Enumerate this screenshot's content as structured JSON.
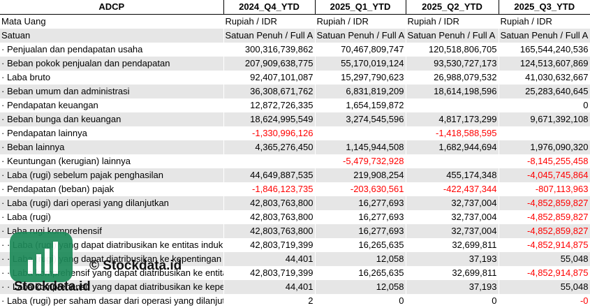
{
  "header": {
    "ticker": "ADCP",
    "periods": [
      "2024_Q4_YTD",
      "2025_Q1_YTD",
      "2025_Q2_YTD",
      "2025_Q3_YTD"
    ]
  },
  "rows": [
    {
      "label": "Mata Uang",
      "values": [
        "Rupiah / IDR",
        "Rupiah / IDR",
        "Rupiah / IDR",
        "Rupiah / IDR"
      ],
      "kind": "text"
    },
    {
      "label": "Satuan",
      "values": [
        "Satuan Penuh / Full A",
        "Satuan Penuh / Full A",
        "Satuan Penuh / Full A",
        "Satuan Penuh / Full A"
      ],
      "kind": "text"
    },
    {
      "label": "· Penjualan dan pendapatan usaha",
      "values": [
        "300,316,739,862",
        "70,467,809,747",
        "120,518,806,705",
        "165,544,240,536"
      ]
    },
    {
      "label": "· Beban pokok penjualan dan pendapatan",
      "values": [
        "207,909,638,775",
        "55,170,019,124",
        "93,530,727,173",
        "124,513,607,869"
      ]
    },
    {
      "label": "· Laba bruto",
      "values": [
        "92,407,101,087",
        "15,297,790,623",
        "26,988,079,532",
        "41,030,632,667"
      ]
    },
    {
      "label": "· Beban umum dan administrasi",
      "values": [
        "36,308,671,762",
        "6,831,819,209",
        "18,614,198,596",
        "25,283,640,645"
      ]
    },
    {
      "label": "· Pendapatan keuangan",
      "values": [
        "12,872,726,335",
        "1,654,159,872",
        "",
        "0"
      ]
    },
    {
      "label": "· Beban bunga dan keuangan",
      "values": [
        "18,624,995,549",
        "3,274,545,596",
        "4,817,173,299",
        "9,671,392,108"
      ]
    },
    {
      "label": "· Pendapatan lainnya",
      "values": [
        "-1,330,996,126",
        "",
        "-1,418,588,595",
        ""
      ]
    },
    {
      "label": "· Beban lainnya",
      "values": [
        "4,365,276,450",
        "1,145,944,508",
        "1,682,944,694",
        "1,976,090,320"
      ]
    },
    {
      "label": "· Keuntungan (kerugian) lainnya",
      "values": [
        "",
        "-5,479,732,928",
        "",
        "-8,145,255,458"
      ]
    },
    {
      "label": "· Laba (rugi) sebelum pajak penghasilan",
      "values": [
        "44,649,887,535",
        "219,908,254",
        "455,174,348",
        "-4,045,745,864"
      ]
    },
    {
      "label": "· Pendapatan (beban) pajak",
      "values": [
        "-1,846,123,735",
        "-203,630,561",
        "-422,437,344",
        "-807,113,963"
      ]
    },
    {
      "label": "· Laba (rugi) dari operasi yang dilanjutkan",
      "values": [
        "42,803,763,800",
        "16,277,693",
        "32,737,004",
        "-4,852,859,827"
      ]
    },
    {
      "label": "· Laba (rugi)",
      "values": [
        "42,803,763,800",
        "16,277,693",
        "32,737,004",
        "-4,852,859,827"
      ]
    },
    {
      "label": "· Laba rugi komprehensif",
      "values": [
        "42,803,763,800",
        "16,277,693",
        "32,737,004",
        "-4,852,859,827"
      ]
    },
    {
      "label": "· · Laba (rugi) yang dapat diatribusikan ke entitas induk",
      "values": [
        "42,803,719,399",
        "16,265,635",
        "32,699,811",
        "-4,852,914,875"
      ]
    },
    {
      "label": "· · Laba (rugi) yang dapat diatribusikan ke kepentingan non-pengendali",
      "values": [
        "44,401",
        "12,058",
        "37,193",
        "55,048"
      ]
    },
    {
      "label": "· · Laba komprehensif yang dapat diatribusikan ke entitas induk",
      "values": [
        "42,803,719,399",
        "16,265,635",
        "32,699,811",
        "-4,852,914,875"
      ]
    },
    {
      "label": "· · Laba komprehensif yang dapat diatribusikan ke kepentingan non-pengendali",
      "values": [
        "44,401",
        "12,058",
        "37,193",
        "55,048"
      ]
    },
    {
      "label": "· Laba (rugi) per saham dasar dari operasi yang dilanjutkan",
      "values": [
        "2",
        "0",
        "0",
        "-0"
      ]
    }
  ],
  "watermark": {
    "center_text": "© Stockdata.id",
    "logo_text": "Stockdata.id",
    "logo_color": "#1e8a5a"
  }
}
